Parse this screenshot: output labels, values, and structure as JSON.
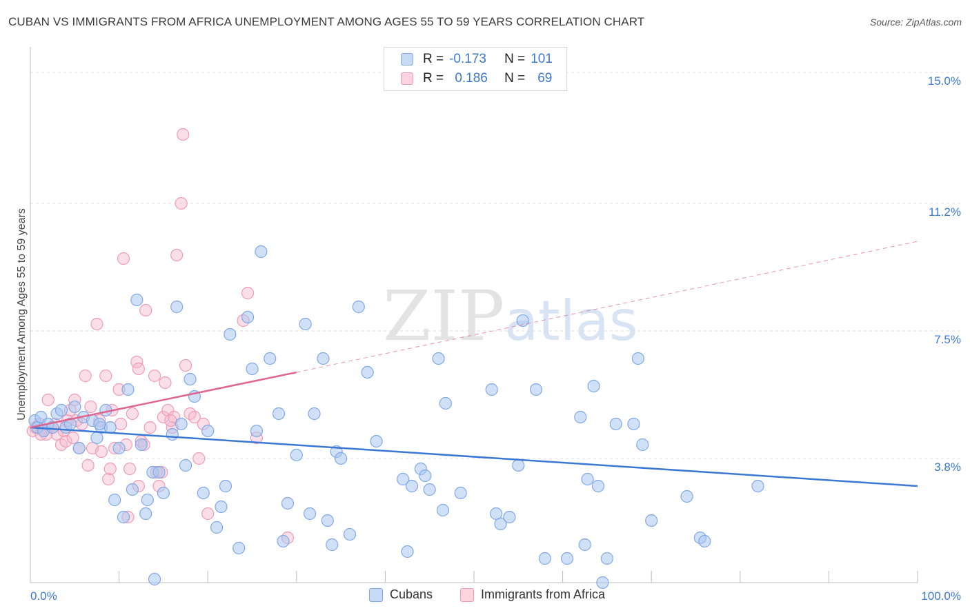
{
  "title": "CUBAN VS IMMIGRANTS FROM AFRICA UNEMPLOYMENT AMONG AGES 55 TO 59 YEARS CORRELATION CHART",
  "source": "Source: ZipAtlas.com",
  "watermark": {
    "zip": "ZIP",
    "atlas": "atlas"
  },
  "legend": {
    "rows": [
      {
        "r_label": "R =",
        "r_value": "-0.173",
        "n_label": "N =",
        "n_value": "101",
        "color": "#a9c6f0"
      },
      {
        "r_label": "R =",
        "r_value": "0.186",
        "n_label": "N =",
        "n_value": "69",
        "color": "#f5b8cc"
      }
    ]
  },
  "bottom_legend": [
    {
      "label": "Cubans",
      "color": "#a9c6f0"
    },
    {
      "label": "Immigrants from Africa",
      "color": "#f5b8cc"
    }
  ],
  "chart_data": {
    "type": "scatter",
    "title": "CUBAN VS IMMIGRANTS FROM AFRICA UNEMPLOYMENT AMONG AGES 55 TO 59 YEARS CORRELATION CHART",
    "xlabel": "",
    "ylabel": "Unemployment Among Ages 55 to 59 years",
    "xlim": [
      0,
      100
    ],
    "ylim": [
      0.2,
      15.6
    ],
    "x_tick_labels": [
      "0.0%",
      "100.0%"
    ],
    "y_ticks": [
      3.8,
      7.5,
      11.2,
      15.0
    ],
    "y_tick_labels": [
      "3.8%",
      "7.5%",
      "11.2%",
      "15.0%"
    ],
    "grid": "horizontal dashed",
    "colors": {
      "cubans": "#3a78d4",
      "africa": "#e0658e"
    },
    "series": [
      {
        "name": "Cubans",
        "points": [
          [
            0.5,
            4.9
          ],
          [
            0.8,
            4.7
          ],
          [
            1.2,
            5.0
          ],
          [
            1.5,
            4.6
          ],
          [
            2.0,
            4.8
          ],
          [
            2.5,
            4.7
          ],
          [
            3.0,
            5.1
          ],
          [
            3.5,
            5.2
          ],
          [
            4.0,
            4.7
          ],
          [
            4.5,
            4.8
          ],
          [
            5.0,
            5.3
          ],
          [
            5.5,
            4.1
          ],
          [
            6.0,
            5.0
          ],
          [
            7.0,
            4.9
          ],
          [
            7.5,
            4.4
          ],
          [
            8.0,
            4.7
          ],
          [
            8.5,
            5.2
          ],
          [
            9.0,
            4.7
          ],
          [
            9.5,
            2.6
          ],
          [
            10.0,
            4.1
          ],
          [
            10.5,
            2.1
          ],
          [
            11.0,
            5.8
          ],
          [
            11.5,
            2.9
          ],
          [
            12.0,
            8.4
          ],
          [
            12.5,
            4.2
          ],
          [
            13.0,
            2.2
          ],
          [
            13.2,
            2.6
          ],
          [
            13.8,
            3.4
          ],
          [
            14.0,
            0.3
          ],
          [
            14.5,
            3.4
          ],
          [
            15.0,
            2.8
          ],
          [
            16.0,
            4.5
          ],
          [
            16.5,
            8.2
          ],
          [
            17.0,
            4.8
          ],
          [
            17.5,
            3.6
          ],
          [
            18.0,
            6.1
          ],
          [
            18.5,
            5.6
          ],
          [
            19.5,
            2.8
          ],
          [
            20.0,
            4.6
          ],
          [
            21.0,
            1.8
          ],
          [
            21.5,
            2.4
          ],
          [
            22.0,
            3.0
          ],
          [
            22.5,
            7.4
          ],
          [
            23.5,
            1.2
          ],
          [
            24.5,
            7.9
          ],
          [
            25.0,
            6.4
          ],
          [
            25.5,
            4.6
          ],
          [
            26.0,
            9.8
          ],
          [
            27.0,
            6.7
          ],
          [
            28.0,
            5.1
          ],
          [
            28.5,
            1.4
          ],
          [
            29.0,
            2.5
          ],
          [
            30.0,
            3.9
          ],
          [
            31.0,
            7.7
          ],
          [
            31.5,
            2.2
          ],
          [
            32.0,
            5.1
          ],
          [
            33.0,
            6.7
          ],
          [
            33.5,
            2.0
          ],
          [
            34.0,
            1.3
          ],
          [
            34.5,
            4.0
          ],
          [
            35.0,
            3.8
          ],
          [
            36.0,
            1.6
          ],
          [
            37.0,
            8.2
          ],
          [
            38.0,
            6.3
          ],
          [
            39.0,
            4.3
          ],
          [
            42.0,
            3.2
          ],
          [
            42.5,
            1.1
          ],
          [
            43.0,
            3.0
          ],
          [
            44.0,
            3.5
          ],
          [
            44.5,
            3.3
          ],
          [
            45.0,
            2.9
          ],
          [
            46.0,
            6.7
          ],
          [
            46.5,
            2.3
          ],
          [
            46.8,
            5.4
          ],
          [
            48.5,
            2.8
          ],
          [
            52.0,
            5.8
          ],
          [
            52.5,
            2.2
          ],
          [
            53.0,
            1.9
          ],
          [
            54.0,
            2.1
          ],
          [
            55.0,
            3.6
          ],
          [
            55.5,
            7.8
          ],
          [
            57.0,
            5.8
          ],
          [
            58.0,
            0.9
          ],
          [
            60.5,
            0.9
          ],
          [
            62.0,
            5.0
          ],
          [
            62.5,
            1.3
          ],
          [
            62.8,
            3.2
          ],
          [
            64.0,
            3.0
          ],
          [
            63.5,
            5.9
          ],
          [
            66.0,
            4.8
          ],
          [
            68.5,
            6.7
          ],
          [
            69.0,
            4.2
          ],
          [
            70.0,
            2.0
          ],
          [
            74.0,
            2.7
          ],
          [
            75.5,
            1.5
          ],
          [
            76.0,
            1.4
          ],
          [
            82.0,
            3.0
          ],
          [
            65.0,
            0.9
          ],
          [
            64.5,
            0.2
          ],
          [
            68.0,
            4.8
          ],
          [
            7.8,
            4.8
          ]
        ]
      },
      {
        "name": "Immigrants from Africa",
        "points": [
          [
            0.3,
            4.6
          ],
          [
            0.6,
            4.7
          ],
          [
            1.0,
            4.8
          ],
          [
            1.5,
            4.6
          ],
          [
            2.0,
            5.5
          ],
          [
            2.5,
            4.7
          ],
          [
            3.0,
            4.5
          ],
          [
            3.5,
            4.2
          ],
          [
            4.0,
            4.3
          ],
          [
            4.2,
            4.9
          ],
          [
            4.5,
            5.2
          ],
          [
            5.0,
            5.5
          ],
          [
            5.5,
            4.1
          ],
          [
            5.8,
            4.8
          ],
          [
            6.2,
            6.2
          ],
          [
            6.5,
            3.6
          ],
          [
            7.0,
            4.1
          ],
          [
            7.5,
            7.7
          ],
          [
            7.8,
            4.9
          ],
          [
            8.0,
            4.0
          ],
          [
            8.5,
            6.2
          ],
          [
            8.8,
            3.2
          ],
          [
            9.0,
            3.5
          ],
          [
            9.5,
            4.1
          ],
          [
            10.0,
            5.8
          ],
          [
            10.2,
            4.8
          ],
          [
            10.5,
            9.6
          ],
          [
            11.0,
            2.1
          ],
          [
            11.2,
            3.5
          ],
          [
            11.5,
            5.1
          ],
          [
            12.0,
            6.6
          ],
          [
            12.2,
            6.4
          ],
          [
            12.5,
            4.3
          ],
          [
            12.8,
            4.2
          ],
          [
            13.0,
            8.1
          ],
          [
            13.5,
            4.7
          ],
          [
            14.0,
            6.2
          ],
          [
            14.2,
            3.4
          ],
          [
            14.5,
            3.0
          ],
          [
            15.0,
            5.0
          ],
          [
            15.2,
            6.0
          ],
          [
            15.5,
            5.2
          ],
          [
            16.0,
            4.7
          ],
          [
            16.2,
            5.0
          ],
          [
            16.5,
            9.7
          ],
          [
            17.0,
            11.2
          ],
          [
            17.2,
            13.2
          ],
          [
            17.5,
            6.5
          ],
          [
            18.0,
            5.1
          ],
          [
            18.5,
            5.0
          ],
          [
            19.0,
            3.8
          ],
          [
            19.5,
            4.8
          ],
          [
            20.0,
            2.2
          ],
          [
            24.0,
            7.8
          ],
          [
            24.5,
            8.6
          ],
          [
            25.5,
            4.4
          ],
          [
            29.0,
            1.5
          ],
          [
            3.8,
            4.6
          ],
          [
            1.8,
            4.5
          ],
          [
            2.8,
            4.8
          ],
          [
            5.2,
            4.9
          ],
          [
            6.8,
            5.3
          ],
          [
            9.2,
            5.2
          ],
          [
            10.8,
            4.2
          ],
          [
            12.2,
            3.0
          ],
          [
            14.8,
            3.4
          ],
          [
            15.8,
            4.9
          ],
          [
            4.8,
            4.4
          ],
          [
            1.2,
            4.5
          ]
        ]
      }
    ],
    "trend_lines": [
      {
        "series": "Cubans",
        "from": [
          0,
          4.7
        ],
        "to": [
          100,
          3.0
        ],
        "style": "solid"
      },
      {
        "series": "Immigrants from Africa",
        "from": [
          0,
          4.7
        ],
        "to": [
          30,
          6.3
        ],
        "style": "solid"
      },
      {
        "series": "Immigrants from Africa",
        "from": [
          30,
          6.3
        ],
        "to": [
          100,
          10.1
        ],
        "style": "dashed"
      }
    ]
  }
}
